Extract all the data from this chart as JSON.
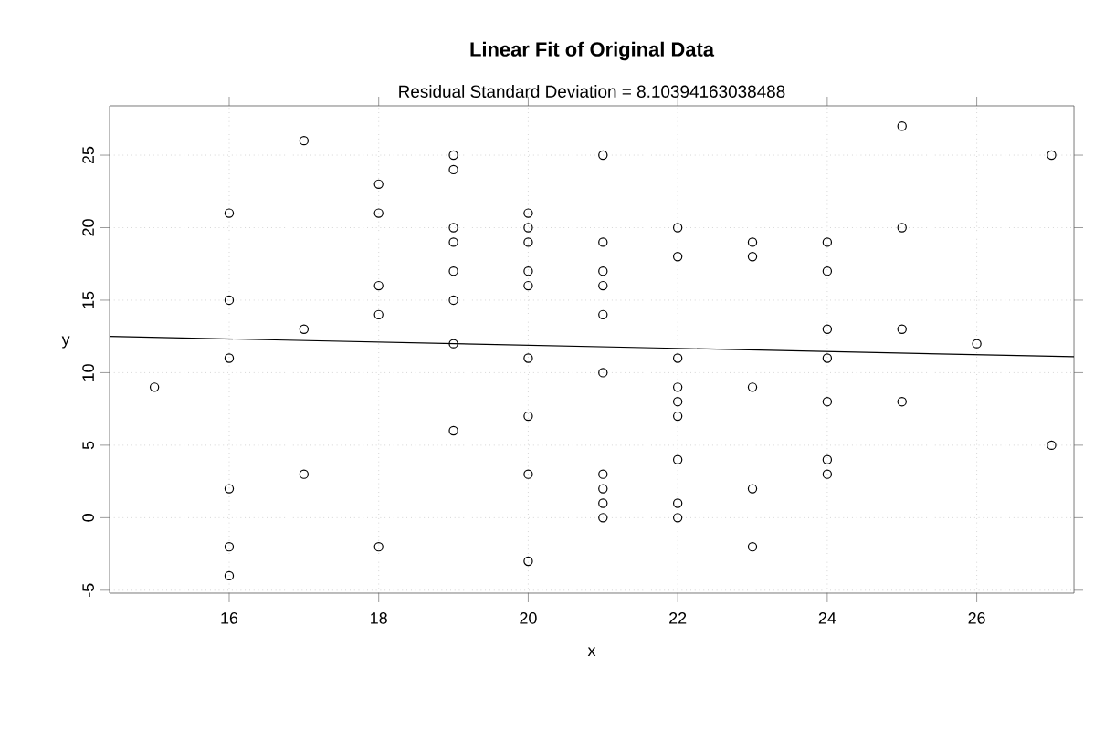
{
  "chart_data": {
    "type": "scatter",
    "title": "Linear Fit of Original Data",
    "subtitle": "Residual Standard Deviation =  8.10394163038488",
    "xlabel": "x",
    "ylabel": "y",
    "xlim": [
      14.4,
      27.3
    ],
    "ylim": [
      -5.2,
      28.4
    ],
    "xticks": [
      16,
      18,
      20,
      22,
      24,
      26
    ],
    "yticks": [
      -5,
      0,
      5,
      10,
      15,
      20,
      25
    ],
    "grid": true,
    "marker": "circle",
    "series": [
      {
        "color": "#000000",
        "x": [
          15,
          16,
          16,
          16,
          16,
          16,
          16,
          17,
          17,
          17,
          18,
          18,
          18,
          18,
          18,
          19,
          19,
          19,
          19,
          19,
          19,
          19,
          19,
          20,
          20,
          20,
          20,
          20,
          20,
          20,
          20,
          20,
          21,
          21,
          21,
          21,
          21,
          21,
          21,
          21,
          21,
          21,
          22,
          22,
          22,
          22,
          22,
          22,
          22,
          22,
          22,
          23,
          23,
          23,
          23,
          23,
          24,
          24,
          24,
          24,
          24,
          24,
          24,
          25,
          25,
          25,
          25,
          26,
          27,
          27
        ],
        "values": [
          9,
          21,
          15,
          11,
          2,
          -2,
          -4,
          26,
          13,
          3,
          23,
          21,
          16,
          14,
          -2,
          25,
          24,
          20,
          19,
          17,
          15,
          12,
          6,
          21,
          20,
          19,
          17,
          16,
          11,
          7,
          3,
          -3,
          25,
          19,
          17,
          16,
          14,
          10,
          3,
          2,
          1,
          0,
          20,
          18,
          11,
          9,
          8,
          7,
          4,
          1,
          0,
          19,
          18,
          9,
          2,
          -2,
          19,
          17,
          13,
          11,
          8,
          4,
          3,
          27,
          20,
          13,
          8,
          12,
          25,
          5
        ]
      },
      {
        "type": "line",
        "marker": "none",
        "color": "#000000",
        "x": [
          14.4,
          27.3
        ],
        "values": [
          12.5,
          11.1
        ]
      }
    ]
  }
}
